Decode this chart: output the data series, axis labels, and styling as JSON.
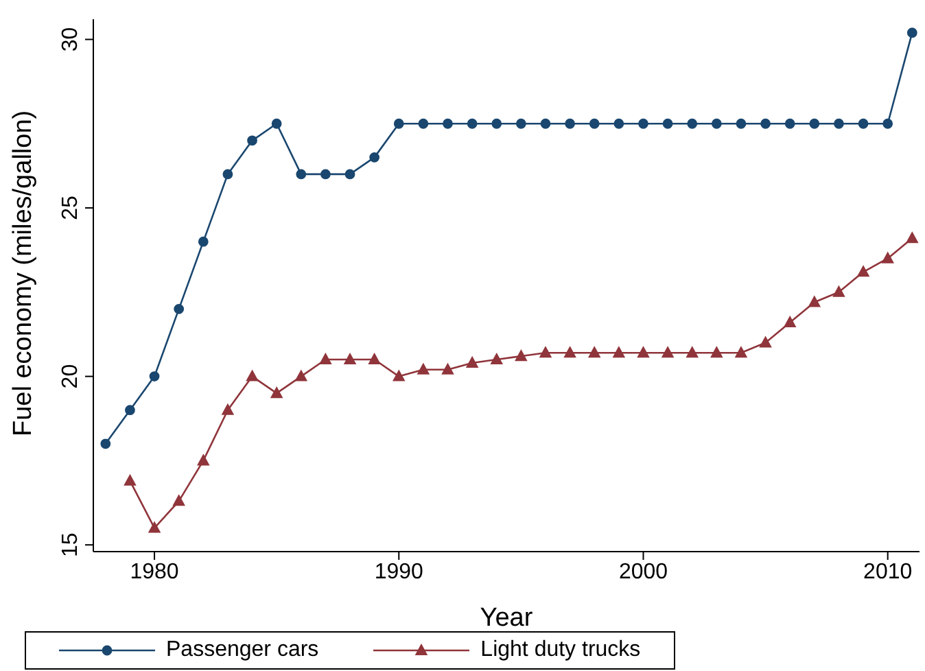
{
  "chart_data": {
    "type": "line",
    "xlabel": "Year",
    "ylabel": "Fuel economy (miles/gallon)",
    "xlim": [
      1977.5,
      2011.3
    ],
    "xticks": [
      1980,
      1990,
      2000,
      2010
    ],
    "ylim": [
      14.8,
      30.6
    ],
    "yticks": [
      15,
      20,
      25,
      30
    ],
    "grid": false,
    "legend": "bottom",
    "line_style": "solid",
    "series": [
      {
        "name": "Passenger cars",
        "color": "#1a476f",
        "marker": "circle",
        "x": [
          1978,
          1979,
          1980,
          1981,
          1982,
          1983,
          1984,
          1985,
          1986,
          1987,
          1988,
          1989,
          1990,
          1991,
          1992,
          1993,
          1994,
          1995,
          1996,
          1997,
          1998,
          1999,
          2000,
          2001,
          2002,
          2003,
          2004,
          2005,
          2006,
          2007,
          2008,
          2009,
          2010,
          2011
        ],
        "values": [
          18,
          19,
          20,
          22,
          24,
          26,
          27,
          27.5,
          26,
          26,
          26,
          26.5,
          27.5,
          27.5,
          27.5,
          27.5,
          27.5,
          27.5,
          27.5,
          27.5,
          27.5,
          27.5,
          27.5,
          27.5,
          27.5,
          27.5,
          27.5,
          27.5,
          27.5,
          27.5,
          27.5,
          27.5,
          27.5,
          30.2
        ]
      },
      {
        "name": "Light duty trucks",
        "color": "#90353b",
        "marker": "triangle",
        "x": [
          1979,
          1980,
          1981,
          1982,
          1983,
          1984,
          1985,
          1986,
          1987,
          1988,
          1989,
          1990,
          1991,
          1992,
          1993,
          1994,
          1995,
          1996,
          1997,
          1998,
          1999,
          2000,
          2001,
          2002,
          2003,
          2004,
          2005,
          2006,
          2007,
          2008,
          2009,
          2010,
          2011
        ],
        "values": [
          16.9,
          15.5,
          16.3,
          17.5,
          19,
          20,
          19.5,
          20,
          20.5,
          20.5,
          20.5,
          20,
          20.2,
          20.2,
          20.4,
          20.5,
          20.6,
          20.7,
          20.7,
          20.7,
          20.7,
          20.7,
          20.7,
          20.7,
          20.7,
          20.7,
          21,
          21.6,
          22.2,
          22.5,
          23.1,
          23.5,
          24.1
        ]
      }
    ]
  }
}
